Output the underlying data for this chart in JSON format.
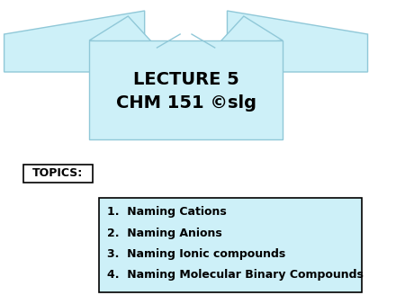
{
  "background_color": "#ffffff",
  "banner_color": "#cdf0f8",
  "banner_edge_color": "#90c8d8",
  "banner_title_line1": "LECTURE 5",
  "banner_title_line2": "CHM 151 ©slg",
  "banner_title_fontsize": 14,
  "banner_title_fontweight": "bold",
  "topics_label": "TOPICS:",
  "topics_label_fontsize": 9,
  "topics_label_fontweight": "bold",
  "topics_box_color": "#cdf0f8",
  "topics": [
    "1.  Naming Cations",
    "2.  Naming Anions",
    "3.  Naming Ionic compounds",
    "4.  Naming Molecular Binary Compounds"
  ],
  "topics_fontsize": 9,
  "topics_fontweight": "bold"
}
